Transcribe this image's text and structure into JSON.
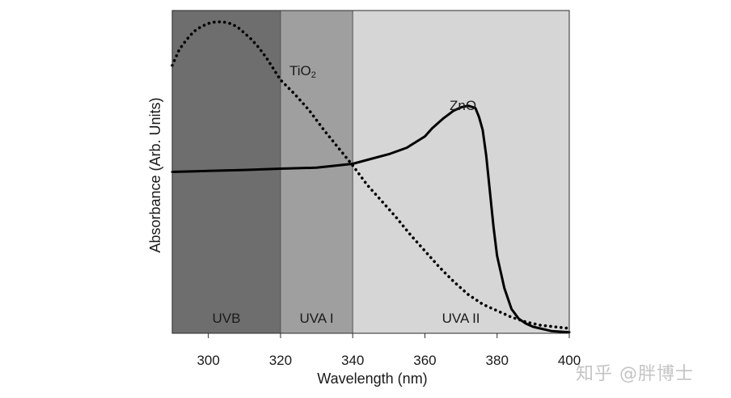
{
  "chart_data": {
    "type": "line",
    "title": "",
    "xlabel": "Wavelength (nm)",
    "ylabel": "Absorbance (Arb. Units)",
    "xlim": [
      290,
      400
    ],
    "ylim": [
      0,
      1
    ],
    "xticks": [
      300,
      320,
      340,
      360,
      380,
      400
    ],
    "grid": false,
    "legend": "none",
    "regions": [
      {
        "label": "UVB",
        "x0": 290,
        "x1": 320,
        "color": "#6e6e6e"
      },
      {
        "label": "UVA I",
        "x0": 320,
        "x1": 340,
        "color": "#9f9f9f"
      },
      {
        "label": "UVA II",
        "x0": 340,
        "x1": 400,
        "color": "#d6d6d6"
      }
    ],
    "series": [
      {
        "name": "TiO",
        "name_subscript": "2",
        "style": "dotted",
        "x": [
          290,
          292,
          294,
          296,
          298,
          300,
          302,
          304,
          306,
          308,
          310,
          312,
          314,
          316,
          318,
          320,
          324,
          328,
          332,
          336,
          340,
          344,
          348,
          352,
          356,
          360,
          364,
          368,
          372,
          376,
          380,
          384,
          388,
          392,
          396,
          400
        ],
        "y": [
          0.83,
          0.88,
          0.91,
          0.935,
          0.95,
          0.96,
          0.965,
          0.965,
          0.96,
          0.95,
          0.93,
          0.91,
          0.885,
          0.855,
          0.82,
          0.785,
          0.74,
          0.69,
          0.63,
          0.575,
          0.52,
          0.46,
          0.41,
          0.36,
          0.305,
          0.255,
          0.205,
          0.16,
          0.12,
          0.09,
          0.07,
          0.05,
          0.035,
          0.025,
          0.02,
          0.015
        ]
      },
      {
        "name": "ZnO",
        "style": "solid",
        "x": [
          290,
          300,
          310,
          320,
          330,
          340,
          345,
          350,
          355,
          360,
          362,
          365,
          368,
          370,
          372,
          374,
          375,
          376,
          377,
          378,
          379,
          380,
          382,
          384,
          386,
          388,
          390,
          395,
          400
        ],
        "y": [
          0.5,
          0.503,
          0.506,
          0.51,
          0.513,
          0.525,
          0.54,
          0.555,
          0.575,
          0.61,
          0.635,
          0.665,
          0.69,
          0.7,
          0.705,
          0.698,
          0.67,
          0.63,
          0.55,
          0.44,
          0.33,
          0.24,
          0.14,
          0.075,
          0.045,
          0.03,
          0.02,
          0.007,
          0.003
        ]
      }
    ]
  },
  "watermark": "知乎 @胖博士"
}
